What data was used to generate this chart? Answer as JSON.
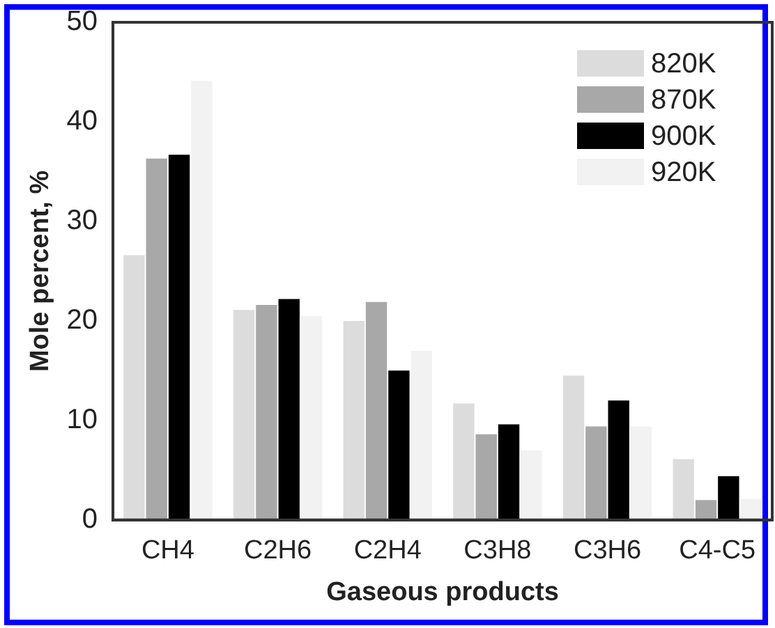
{
  "chart_data": {
    "type": "bar",
    "xlabel": "Gaseous products",
    "ylabel": "Mole percent, %",
    "categories": [
      "CH4",
      "C2H6",
      "C2H4",
      "C3H8",
      "C3H6",
      "C4-C5"
    ],
    "series": [
      {
        "name": "820K",
        "color": "#dcdcdc",
        "values": [
          26.6,
          21.1,
          20.0,
          11.7,
          14.5,
          6.1
        ]
      },
      {
        "name": "870K",
        "color": "#a8a8a8",
        "values": [
          36.3,
          21.6,
          21.9,
          8.6,
          9.4,
          2.0
        ]
      },
      {
        "name": "900K",
        "color": "#000000",
        "values": [
          36.7,
          22.2,
          15.0,
          9.6,
          12.0,
          4.4
        ]
      },
      {
        "name": "920K",
        "color": "#f2f2f2",
        "values": [
          44.1,
          20.5,
          17.0,
          7.0,
          9.4,
          2.1
        ]
      }
    ],
    "ylim": [
      0,
      50
    ],
    "yticks": [
      0,
      10,
      20,
      30,
      40,
      50
    ],
    "grid": false,
    "legend": "top right"
  }
}
